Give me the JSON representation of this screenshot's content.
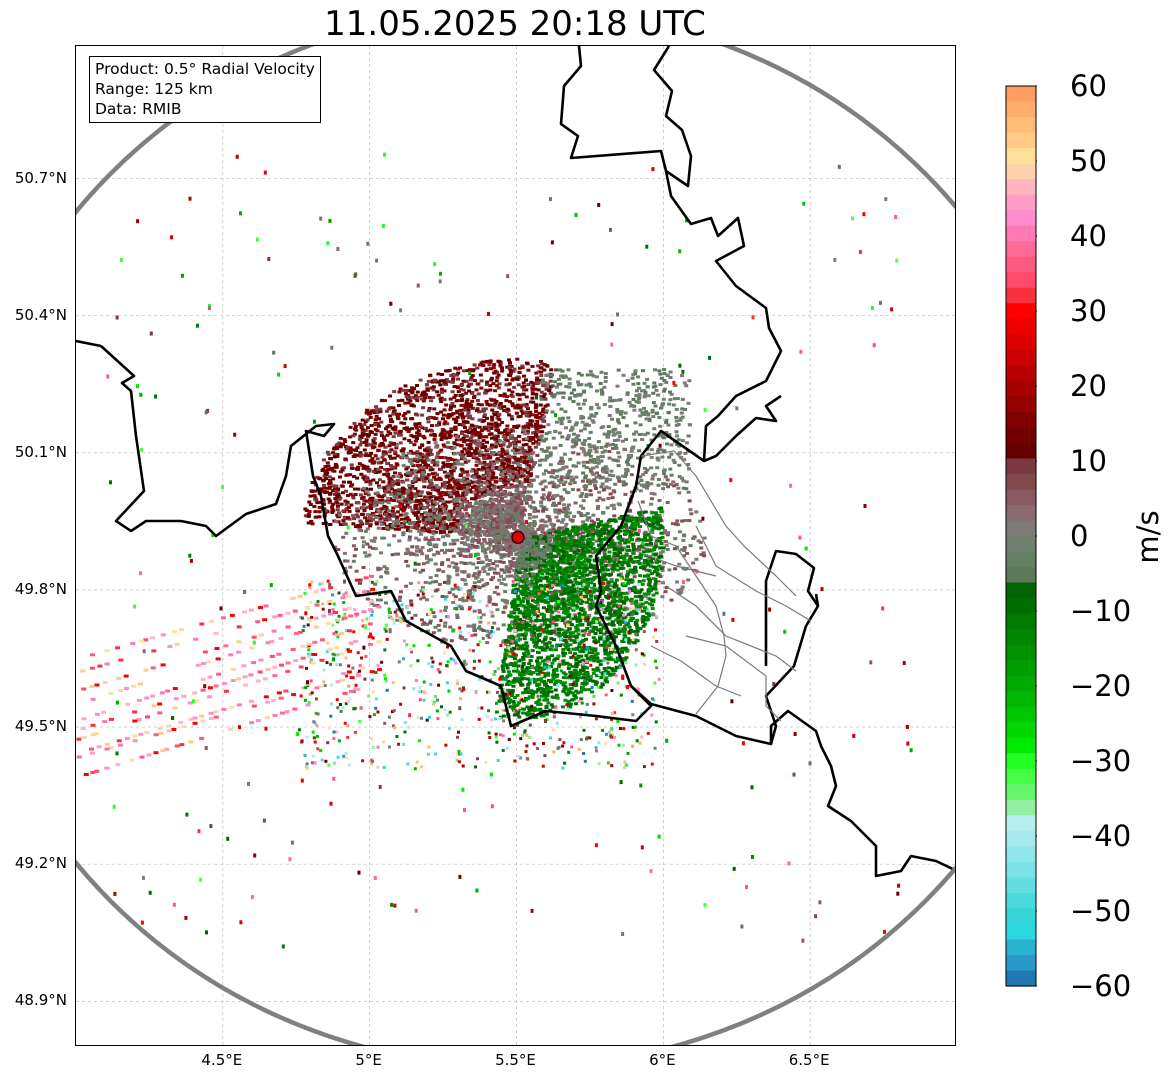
{
  "title": "11.05.2025 20:18 UTC",
  "info": {
    "product": "Product: 0.5° Radial Velocity",
    "range": "Range: 125 km",
    "data": "Data: RMIB"
  },
  "lat_ticks": [
    {
      "value": 50.7,
      "label": "50.7°N"
    },
    {
      "value": 50.4,
      "label": "50.4°N"
    },
    {
      "value": 50.1,
      "label": "50.1°N"
    },
    {
      "value": 49.8,
      "label": "49.8°N"
    },
    {
      "value": 49.5,
      "label": "49.5°N"
    },
    {
      "value": 49.2,
      "label": "49.2°N"
    },
    {
      "value": 48.9,
      "label": "48.9°N"
    }
  ],
  "lon_ticks": [
    {
      "value": 4.5,
      "label": "4.5°E"
    },
    {
      "value": 5.0,
      "label": "5°E"
    },
    {
      "value": 5.5,
      "label": "5.5°E"
    },
    {
      "value": 6.0,
      "label": "6°E"
    },
    {
      "value": 6.5,
      "label": "6.5°E"
    }
  ],
  "extent": {
    "lon_min": 4.0,
    "lon_max": 7.0,
    "lat_min": 48.8,
    "lat_max": 50.99
  },
  "radar_site": {
    "lon": 5.505,
    "lat": 49.915
  },
  "colorbar": {
    "unit": "m/s",
    "min": -60,
    "max": 60,
    "ticks": [
      {
        "value": 60,
        "label": "60"
      },
      {
        "value": 50,
        "label": "50"
      },
      {
        "value": 40,
        "label": "40"
      },
      {
        "value": 30,
        "label": "30"
      },
      {
        "value": 20,
        "label": "20"
      },
      {
        "value": 10,
        "label": "10"
      },
      {
        "value": 0,
        "label": "0"
      },
      {
        "value": -10,
        "label": "−10"
      },
      {
        "value": -20,
        "label": "−20"
      },
      {
        "value": -30,
        "label": "−30"
      },
      {
        "value": -40,
        "label": "−40"
      },
      {
        "value": -50,
        "label": "−50"
      },
      {
        "value": -60,
        "label": "−60"
      }
    ],
    "colors_top_to_bottom": [
      "#ff9e5e",
      "#ffad6a",
      "#ffbd78",
      "#ffcb86",
      "#ffe09a",
      "#ffd2ae",
      "#ffb6c0",
      "#ff9ec8",
      "#ff8ccc",
      "#ff7ab2",
      "#ff6a98",
      "#ff5a80",
      "#ff4a6c",
      "#f8313f",
      "#ff0000",
      "#ee0000",
      "#dc0000",
      "#cc0000",
      "#b80000",
      "#a60000",
      "#940000",
      "#820000",
      "#720000",
      "#640000",
      "#7a3a40",
      "#84484f",
      "#895a62",
      "#886a70",
      "#7f7b78",
      "#6f7e6f",
      "#638062",
      "#5c7a5a",
      "#006400",
      "#006e00",
      "#007a00",
      "#008600",
      "#009200",
      "#009e00",
      "#00aa00",
      "#00b800",
      "#00c800",
      "#00d800",
      "#00ea00",
      "#22ff22",
      "#44ff44",
      "#66f56b",
      "#93f0a3",
      "#b7eef0",
      "#a5eaee",
      "#90e6ea",
      "#7be2e8",
      "#62dee2",
      "#4ad9dc",
      "#35d5d8",
      "#2bd8e0",
      "#2ab3d0",
      "#2a98c8",
      "#1f77b4"
    ]
  }
}
